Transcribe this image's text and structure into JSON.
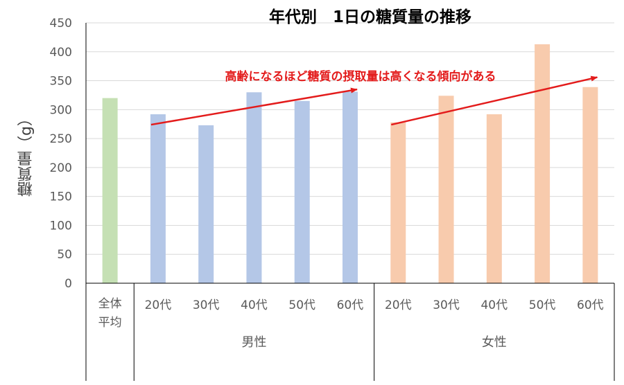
{
  "chart_data": {
    "type": "bar",
    "title": "年代別　1日の糖質量の推移",
    "ylabel": "糖質量（g）",
    "ylim": [
      0,
      450
    ],
    "yticks": [
      0,
      50,
      100,
      150,
      200,
      250,
      300,
      350,
      400,
      450
    ],
    "grid": true,
    "categories": [
      "全体平均",
      "20代",
      "30代",
      "40代",
      "50代",
      "60代",
      "20代",
      "30代",
      "40代",
      "50代",
      "60代"
    ],
    "groups": [
      {
        "name": "",
        "categories": [
          "全体平均"
        ]
      },
      {
        "name": "男性",
        "categories": [
          "20代",
          "30代",
          "40代",
          "50代",
          "60代"
        ]
      },
      {
        "name": "女性",
        "categories": [
          "20代",
          "30代",
          "40代",
          "50代",
          "60代"
        ]
      }
    ],
    "values": [
      320,
      292,
      273,
      330,
      315,
      331,
      278,
      324,
      292,
      413,
      339
    ],
    "colors": {
      "overall": "#c5e0b4",
      "male": "#b4c7e7",
      "female": "#f8cbad",
      "annotation": "#e31b1b"
    },
    "annotation": "高齢になるほど糖質の摂取量は高くなる傾向がある",
    "trend_lines": [
      {
        "group": "男性",
        "from": [
          0,
          274
        ],
        "to": [
          4,
          335
        ]
      },
      {
        "group": "女性",
        "from": [
          0,
          274
        ],
        "to": [
          4,
          356
        ]
      }
    ]
  }
}
